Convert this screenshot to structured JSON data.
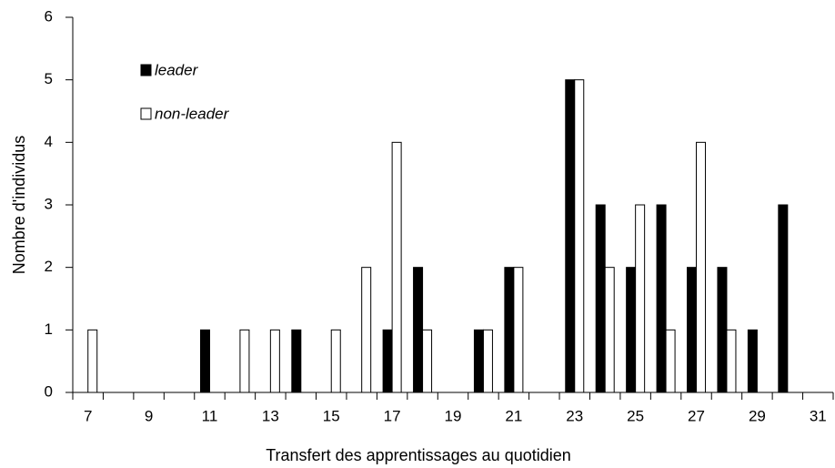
{
  "chart_data": {
    "type": "bar",
    "xlabel": "Transfert des apprentissages au quotidien",
    "ylabel": "Nombre d'individus",
    "categories": [
      7,
      null,
      9,
      null,
      11,
      null,
      13,
      null,
      15,
      null,
      17,
      null,
      19,
      null,
      21,
      null,
      23,
      null,
      25,
      null,
      27,
      null,
      29,
      null,
      31
    ],
    "series": [
      {
        "name": "leader",
        "color": "#000000",
        "values": [
          0,
          0,
          0,
          0,
          1,
          0,
          0,
          1,
          0,
          0,
          1,
          2,
          0,
          1,
          2,
          0,
          5,
          3,
          2,
          3,
          2,
          2,
          1,
          3,
          0
        ]
      },
      {
        "name": "non-leader",
        "color": "#ffffff",
        "values": [
          1,
          0,
          0,
          0,
          0,
          1,
          1,
          0,
          1,
          2,
          4,
          1,
          0,
          1,
          2,
          0,
          5,
          2,
          3,
          1,
          4,
          1,
          0,
          0,
          0
        ]
      }
    ],
    "ylim": [
      0,
      6
    ],
    "yticks": [
      0,
      1,
      2,
      3,
      4,
      5,
      6
    ],
    "grid": false,
    "legend": "upper left"
  }
}
